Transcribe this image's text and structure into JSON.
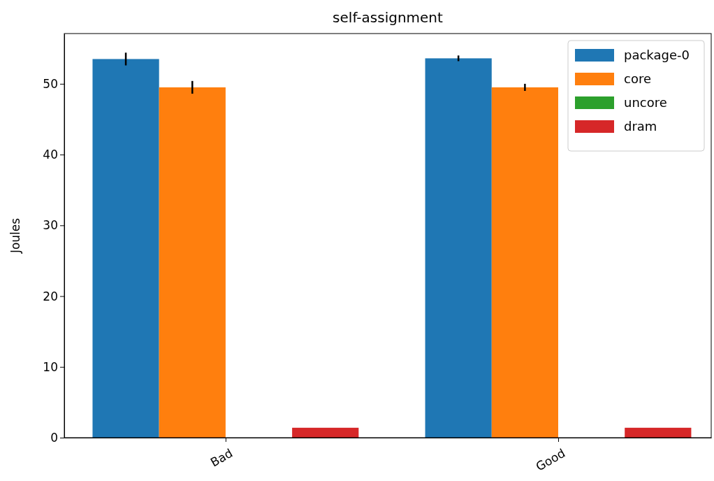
{
  "chart_data": {
    "type": "bar",
    "title": "self-assignment",
    "ylabel": "Joules",
    "categories": [
      "Bad",
      "Good"
    ],
    "series": [
      {
        "name": "package-0",
        "color": "#1f77b4",
        "values": [
          53.5,
          53.6
        ],
        "errors": [
          0.9,
          0.4
        ]
      },
      {
        "name": "core",
        "color": "#ff7f0e",
        "values": [
          49.5,
          49.5
        ],
        "errors": [
          0.9,
          0.5
        ]
      },
      {
        "name": "uncore",
        "color": "#2ca02c",
        "values": [
          0,
          0
        ]
      },
      {
        "name": "dram",
        "color": "#d62728",
        "values": [
          1.4,
          1.4
        ]
      }
    ],
    "ylim": [
      0,
      57.1
    ],
    "yticks": [
      0,
      10,
      20,
      30,
      40,
      50
    ],
    "legend": "top right",
    "grid": false
  }
}
